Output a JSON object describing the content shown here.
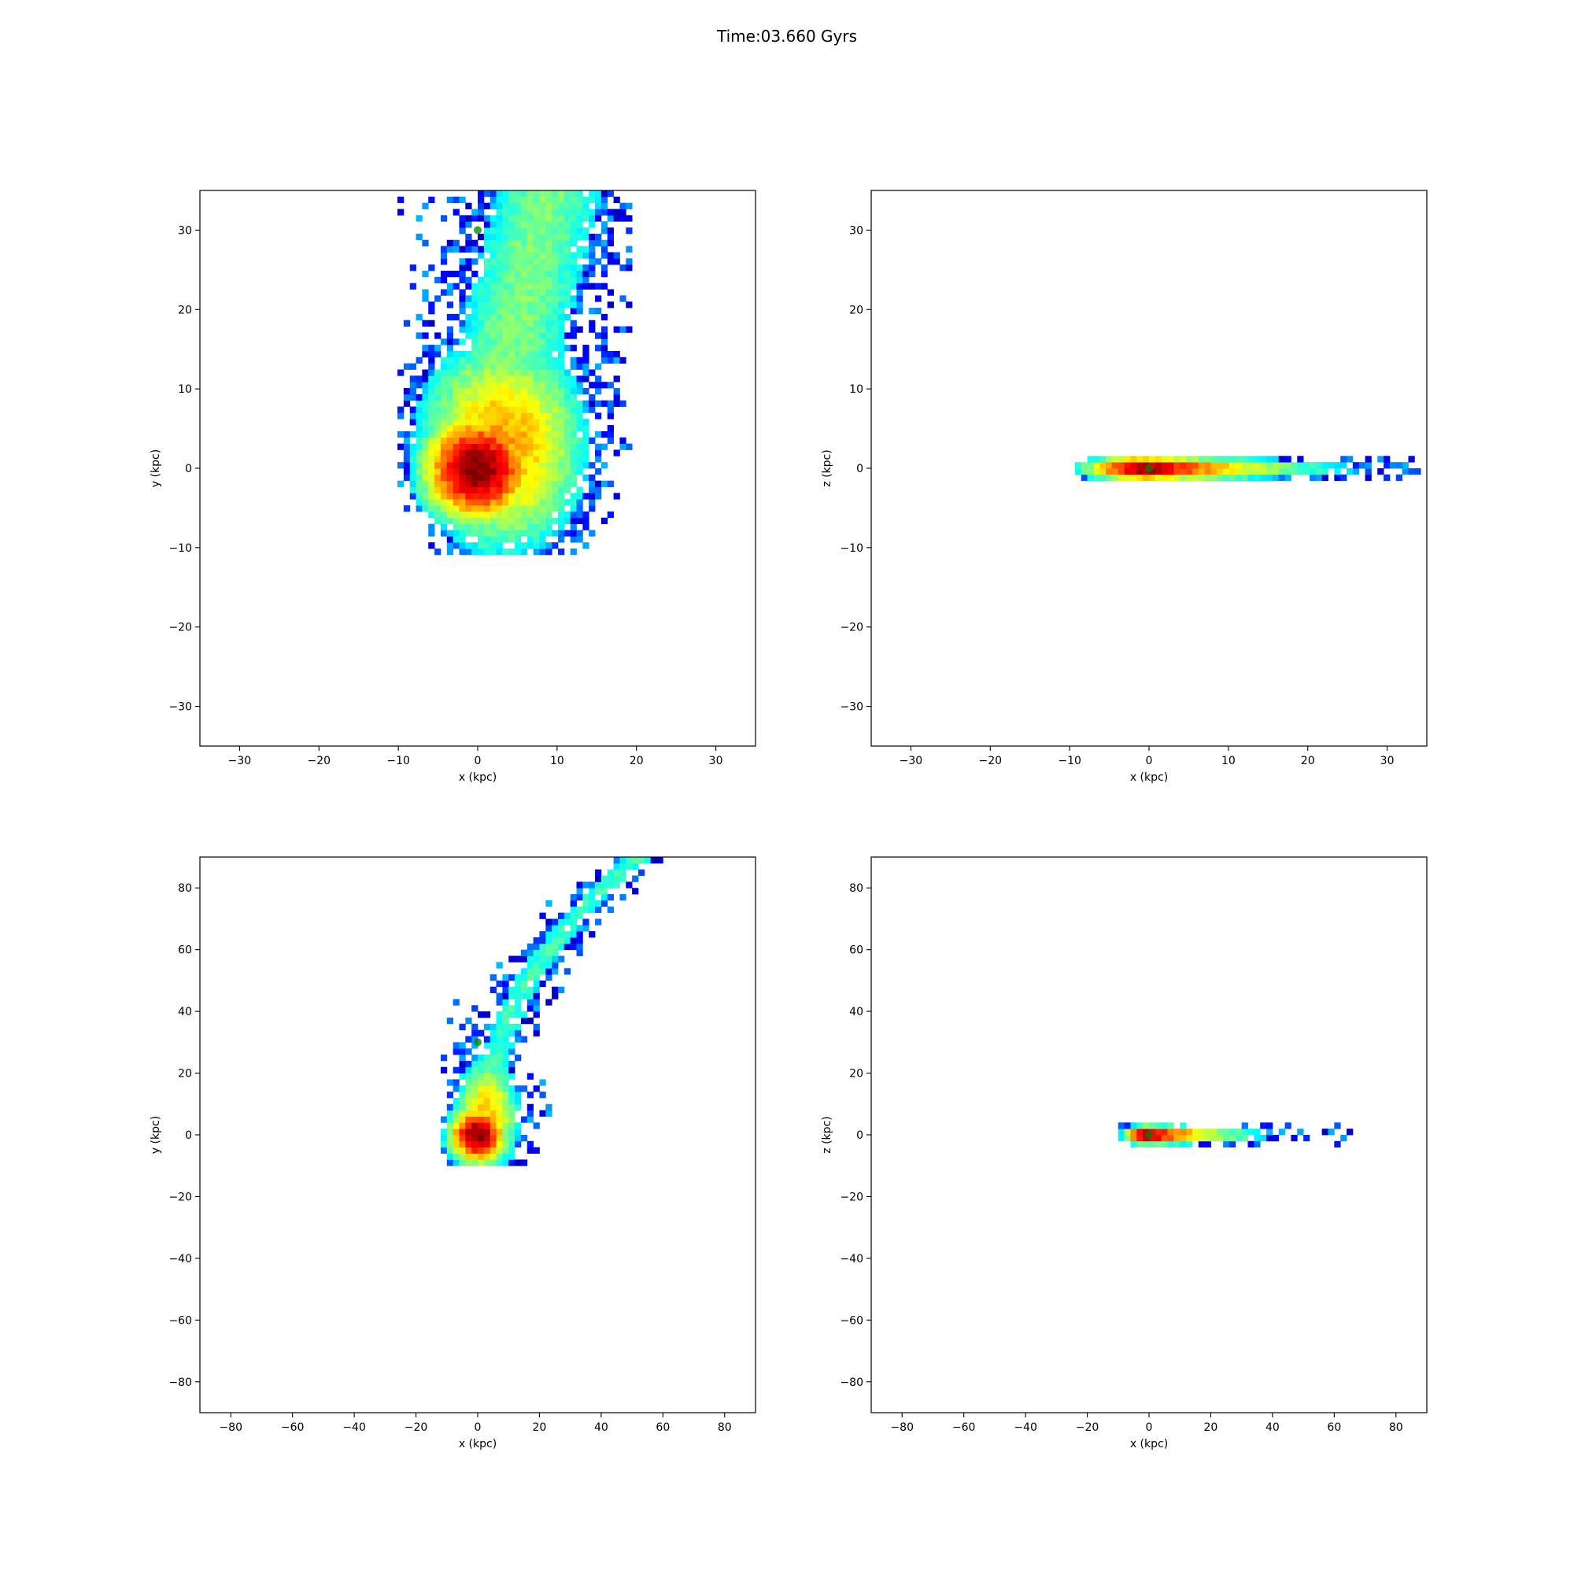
{
  "figure": {
    "title": "Time:03.660 Gyrs"
  },
  "chart_data": [
    {
      "id": "top-left",
      "type": "heatmap",
      "projection": "x-y",
      "xlabel": "x (kpc)",
      "ylabel": "y (kpc)",
      "xlim": [
        -35,
        35
      ],
      "ylim": [
        -35,
        35
      ],
      "xticks": [
        -30,
        -20,
        -10,
        0,
        10,
        20,
        30
      ],
      "yticks": [
        -30,
        -20,
        -10,
        0,
        10,
        20,
        30
      ],
      "xtick_labels": [
        "−30",
        "−20",
        "−10",
        "0",
        "10",
        "20",
        "30"
      ],
      "ytick_labels": [
        "−30",
        "−20",
        "−10",
        "0",
        "10",
        "20",
        "30"
      ],
      "colormap": "jet",
      "features": [
        {
          "kind": "core",
          "x": 0,
          "y": 0,
          "peak": 1.0
        },
        {
          "kind": "body",
          "extent_x": [
            -9,
            19
          ],
          "extent_y": [
            -10,
            16
          ]
        },
        {
          "kind": "stream",
          "direction": "up",
          "reaches_y": 35,
          "x_range": [
            -5,
            20
          ]
        }
      ],
      "markers": [
        {
          "x": 0,
          "y": 30,
          "color": "#008000"
        }
      ]
    },
    {
      "id": "top-right",
      "type": "heatmap",
      "projection": "x-z",
      "xlabel": "x (kpc)",
      "ylabel": "z (kpc)",
      "xlim": [
        -35,
        35
      ],
      "ylim": [
        -35,
        35
      ],
      "xticks": [
        -30,
        -20,
        -10,
        0,
        10,
        20,
        30
      ],
      "yticks": [
        -30,
        -20,
        -10,
        0,
        10,
        20,
        30
      ],
      "xtick_labels": [
        "−30",
        "−20",
        "−10",
        "0",
        "10",
        "20",
        "30"
      ],
      "ytick_labels": [
        "−30",
        "−20",
        "−10",
        "0",
        "10",
        "20",
        "30"
      ],
      "colormap": "jet",
      "features": [
        {
          "kind": "thin-disk",
          "x_range": [
            -10,
            35
          ],
          "z_thickness": 1.2,
          "peak_x": 0
        }
      ],
      "markers": [
        {
          "x": 0,
          "y": 0,
          "color": "#008000"
        }
      ]
    },
    {
      "id": "bottom-left",
      "type": "heatmap",
      "projection": "x-y",
      "xlabel": "x (kpc)",
      "ylabel": "y (kpc)",
      "xlim": [
        -90,
        90
      ],
      "ylim": [
        -90,
        90
      ],
      "xticks": [
        -80,
        -60,
        -40,
        -20,
        0,
        20,
        40,
        60,
        80
      ],
      "yticks": [
        -80,
        -60,
        -40,
        -20,
        0,
        20,
        40,
        60,
        80
      ],
      "xtick_labels": [
        "−80",
        "−60",
        "−40",
        "−20",
        "0",
        "20",
        "40",
        "60",
        "80"
      ],
      "ytick_labels": [
        "−80",
        "−60",
        "−40",
        "−20",
        "0",
        "20",
        "40",
        "60",
        "80"
      ],
      "colormap": "jet",
      "features": [
        {
          "kind": "core",
          "x": 0,
          "y": 0,
          "peak": 1.0
        },
        {
          "kind": "body",
          "extent_x": [
            -10,
            18
          ],
          "extent_y": [
            -10,
            30
          ]
        },
        {
          "kind": "stream",
          "direction": "curve-up-right",
          "reaches_y": 90,
          "end_x": 45
        }
      ],
      "markers": [
        {
          "x": 0,
          "y": 30,
          "color": "#008000"
        }
      ]
    },
    {
      "id": "bottom-right",
      "type": "heatmap",
      "projection": "x-z",
      "xlabel": "x (kpc)",
      "ylabel": "z (kpc)",
      "xlim": [
        -90,
        90
      ],
      "ylim": [
        -90,
        90
      ],
      "xticks": [
        -80,
        -60,
        -40,
        -20,
        0,
        20,
        40,
        60,
        80
      ],
      "yticks": [
        -80,
        -60,
        -40,
        -20,
        0,
        20,
        40,
        60,
        80
      ],
      "xtick_labels": [
        "−80",
        "−60",
        "−40",
        "−20",
        "0",
        "20",
        "40",
        "60",
        "80"
      ],
      "ytick_labels": [
        "−80",
        "−60",
        "−40",
        "−20",
        "0",
        "20",
        "40",
        "60",
        "80"
      ],
      "colormap": "jet",
      "features": [
        {
          "kind": "thin-disk",
          "x_range": [
            -10,
            68
          ],
          "z_thickness": 2.5,
          "peak_x": 0
        }
      ],
      "markers": [
        {
          "x": 0,
          "y": 0,
          "color": "#008000"
        }
      ]
    }
  ]
}
